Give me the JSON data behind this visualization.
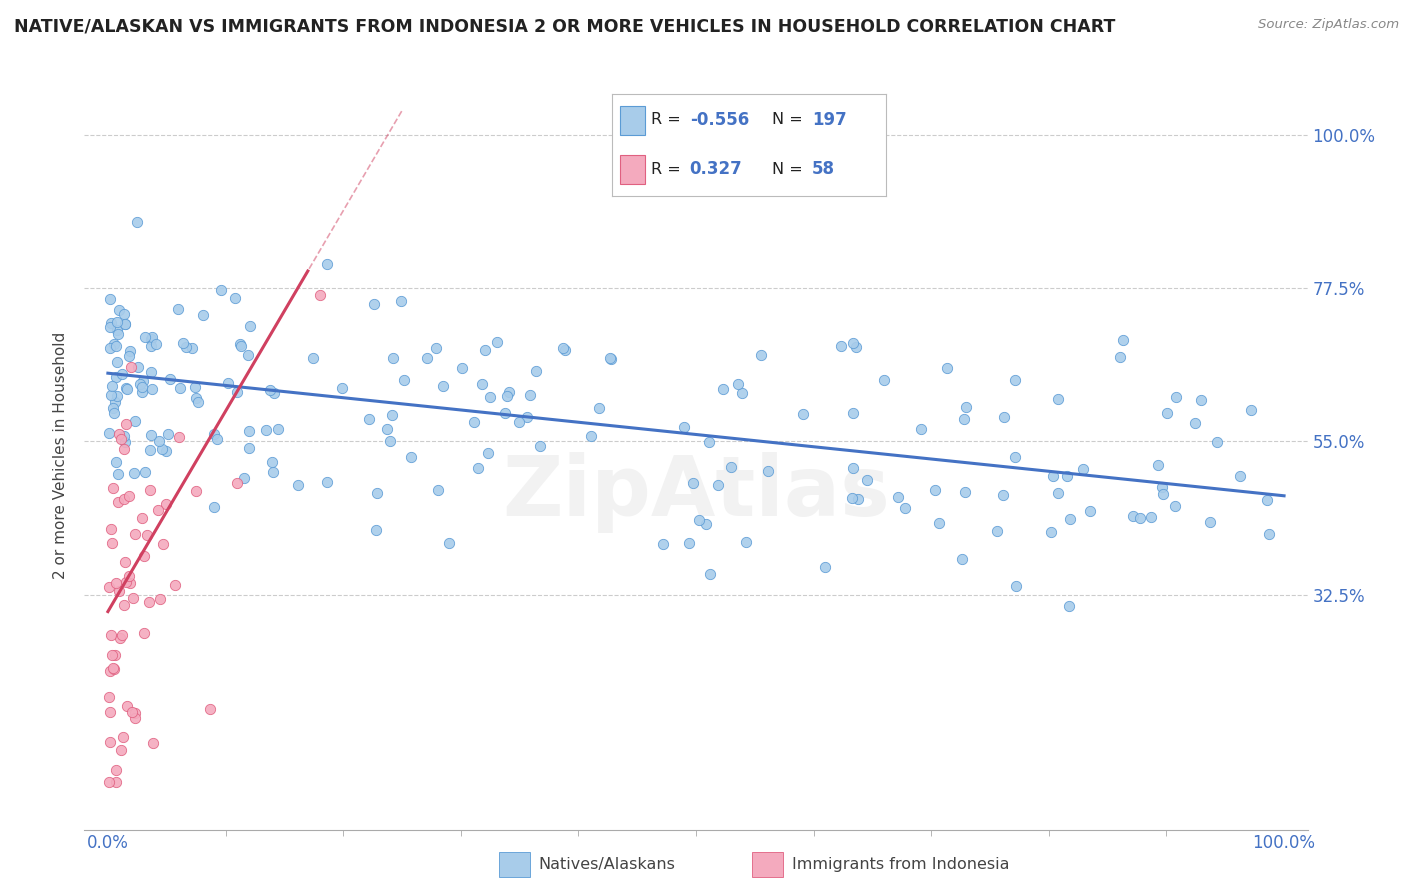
{
  "title": "NATIVE/ALASKAN VS IMMIGRANTS FROM INDONESIA 2 OR MORE VEHICLES IN HOUSEHOLD CORRELATION CHART",
  "source": "Source: ZipAtlas.com",
  "ylabel": "2 or more Vehicles in Household",
  "xlim": [
    -2,
    102
  ],
  "ylim": [
    -2,
    108
  ],
  "yticks": [
    32.5,
    55.0,
    77.5,
    100.0
  ],
  "yticklabels": [
    "32.5%",
    "55.0%",
    "77.5%",
    "100.0%"
  ],
  "blue_R": -0.556,
  "blue_N": 197,
  "pink_R": 0.327,
  "pink_N": 58,
  "blue_color": "#A8CCEA",
  "pink_color": "#F4AABE",
  "blue_edge_color": "#5B9BD5",
  "pink_edge_color": "#E06080",
  "blue_line_color": "#4472C4",
  "pink_line_color": "#D04060",
  "watermark": "ZipAtlas",
  "legend_label_blue": "Natives/Alaskans",
  "legend_label_pink": "Immigrants from Indonesia",
  "blue_trend_start_x": 0,
  "blue_trend_start_y": 65,
  "blue_trend_end_x": 100,
  "blue_trend_end_y": 47,
  "pink_trend_start_x": 0,
  "pink_trend_start_y": 30,
  "pink_trend_end_x": 17,
  "pink_trend_end_y": 80
}
